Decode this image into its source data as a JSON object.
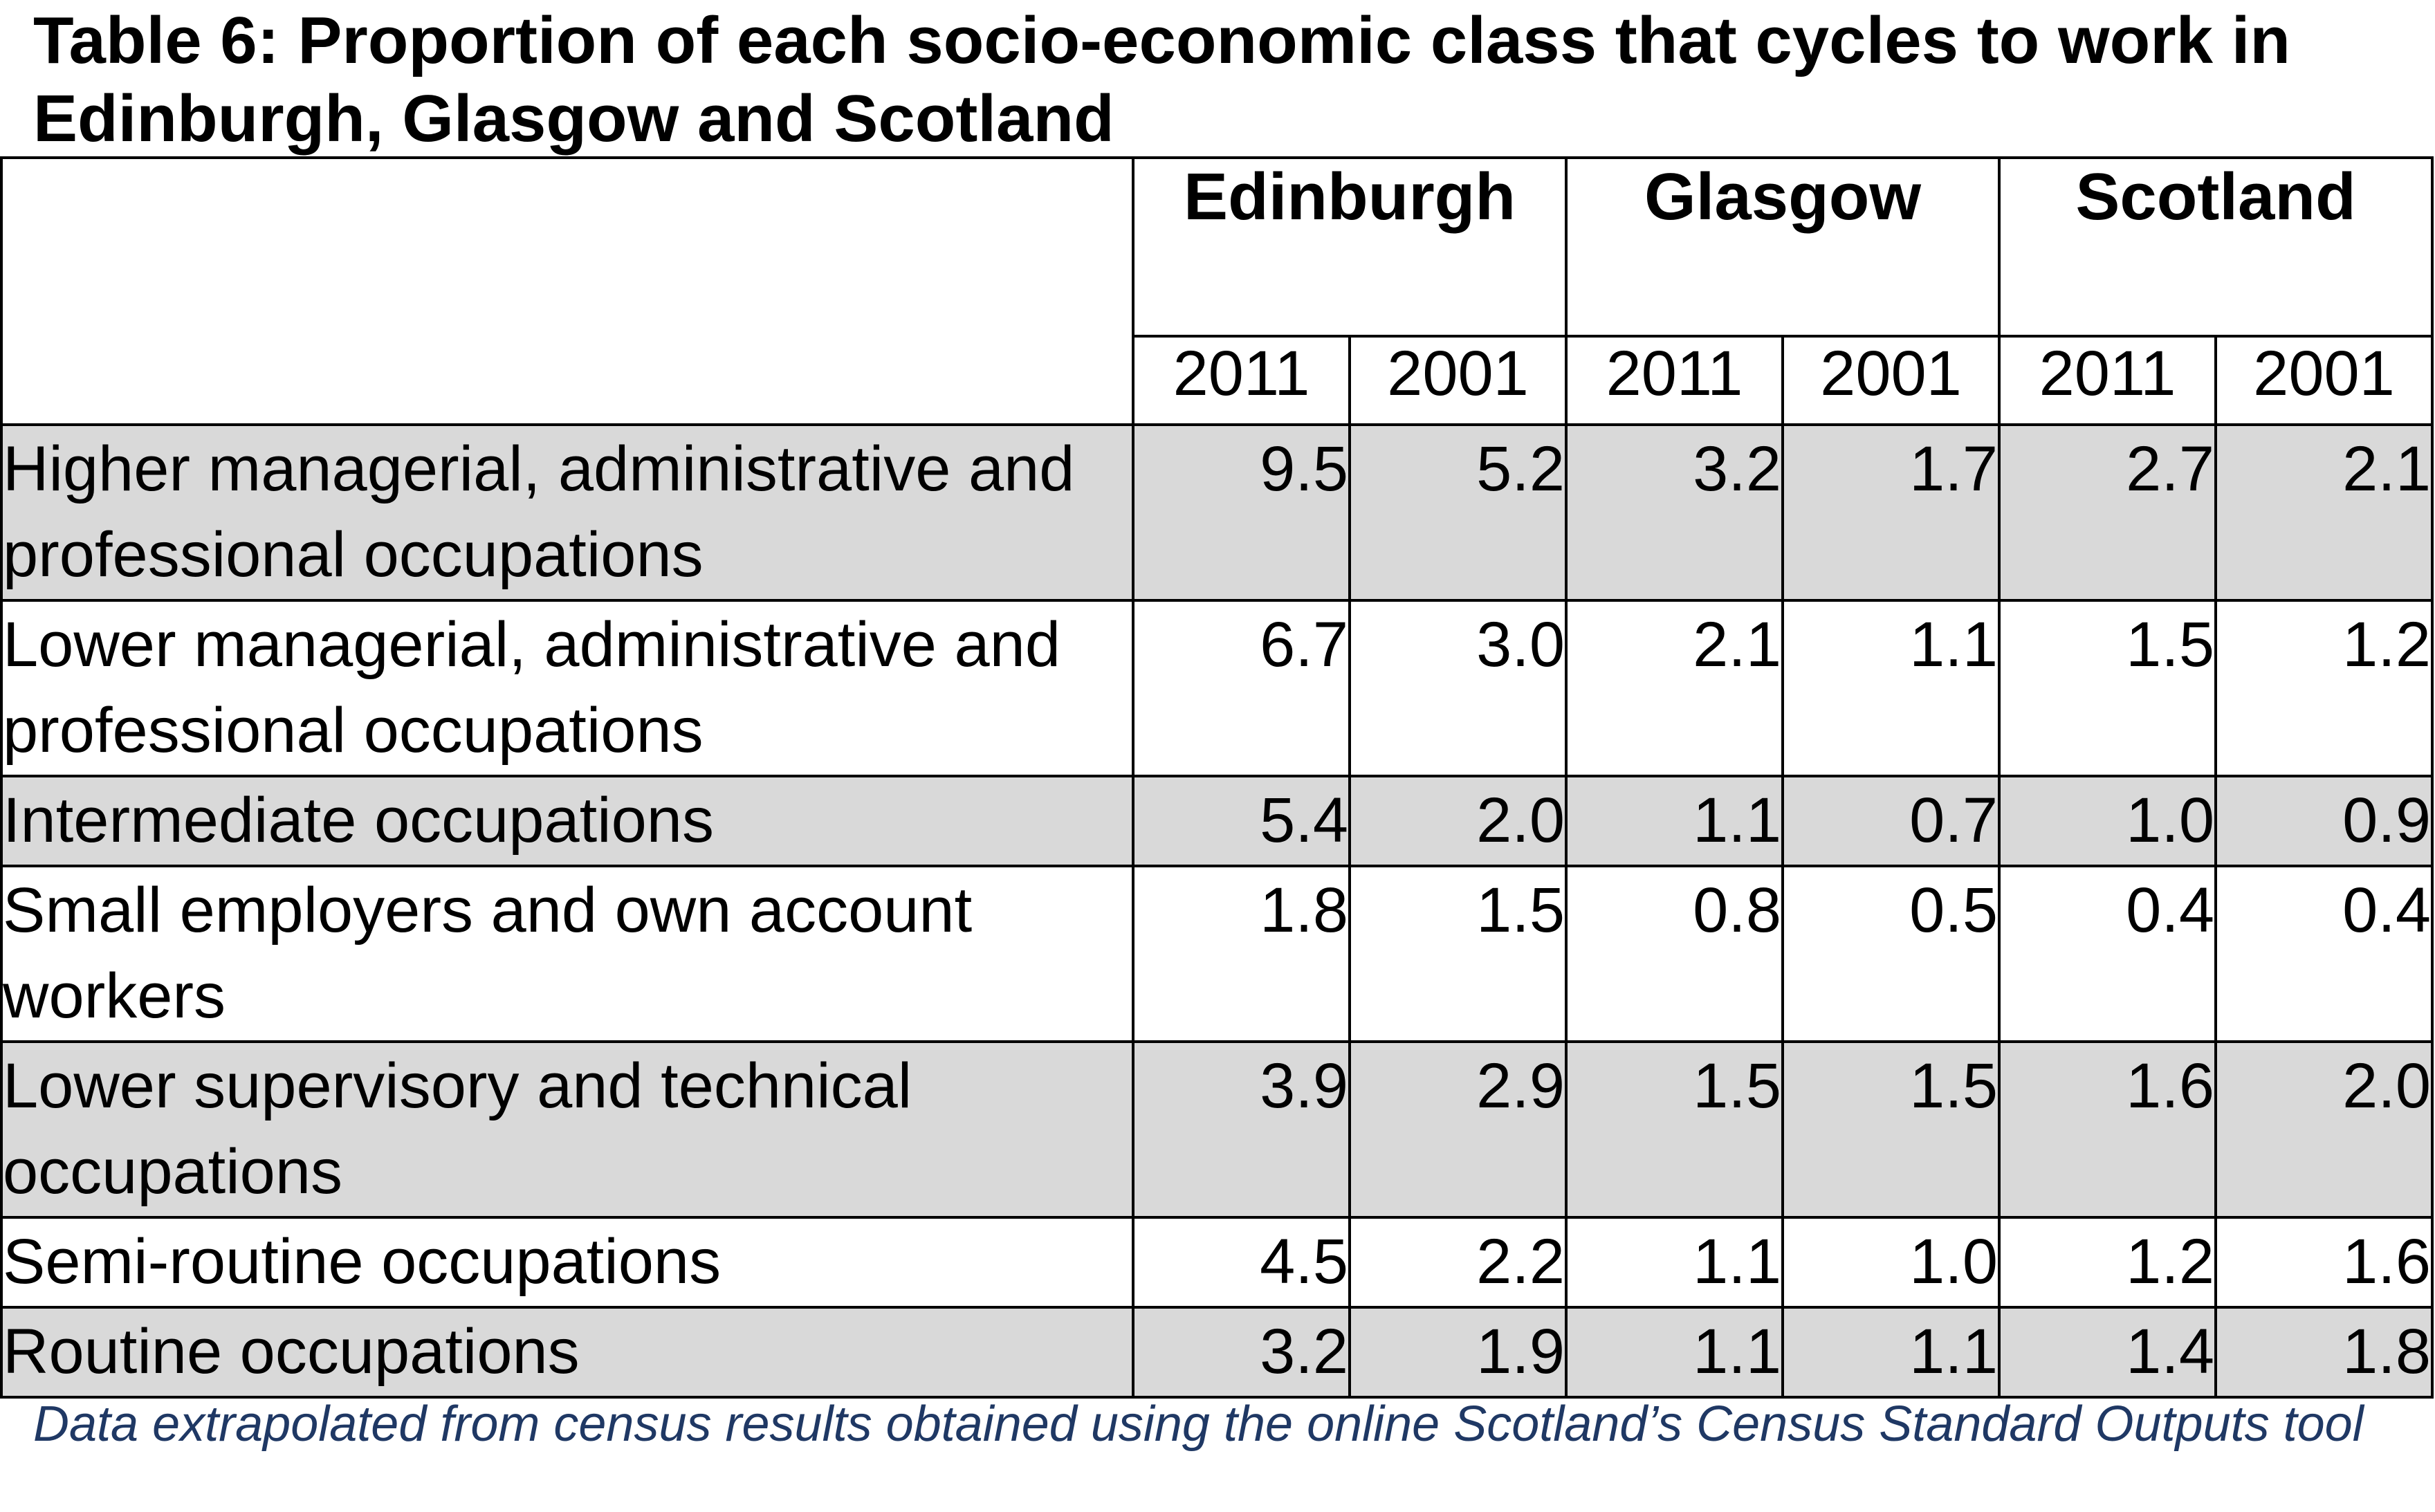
{
  "title": "Table 6: Proportion of each socio-economic class that cycles to work in Edinburgh, Glasgow and Scotland",
  "table": {
    "regions": [
      "Edinburgh",
      "Glasgow",
      "Scotland"
    ],
    "years": [
      "2011",
      "2001",
      "2011",
      "2001",
      "2011",
      "2001"
    ],
    "rows": [
      {
        "label": "Higher managerial, administrative and professional occupations",
        "values": [
          "9.5",
          "5.2",
          "3.2",
          "1.7",
          "2.7",
          "2.1"
        ]
      },
      {
        "label": "Lower managerial, administrative and professional occupations",
        "values": [
          "6.7",
          "3.0",
          "2.1",
          "1.1",
          "1.5",
          "1.2"
        ]
      },
      {
        "label": "Intermediate occupations",
        "values": [
          "5.4",
          "2.0",
          "1.1",
          "0.7",
          "1.0",
          "0.9"
        ]
      },
      {
        "label": "Small employers and own account workers",
        "values": [
          "1.8",
          "1.5",
          "0.8",
          "0.5",
          "0.4",
          "0.4"
        ]
      },
      {
        "label": "Lower supervisory and technical occupations",
        "values": [
          "3.9",
          "2.9",
          "1.5",
          "1.5",
          "1.6",
          "2.0"
        ]
      },
      {
        "label": "Semi-routine occupations",
        "values": [
          "4.5",
          "2.2",
          "1.1",
          "1.0",
          "1.2",
          "1.6"
        ]
      },
      {
        "label": "Routine occupations",
        "values": [
          "3.2",
          "1.9",
          "1.1",
          "1.1",
          "1.4",
          "1.8"
        ]
      }
    ]
  },
  "note": "Data extrapolated from census results obtained using the online Scotland’s Census Standard Outputs tool",
  "colors": {
    "shaded_row": "#d9d9d9",
    "note_text": "#1f3864",
    "border": "#000000"
  }
}
